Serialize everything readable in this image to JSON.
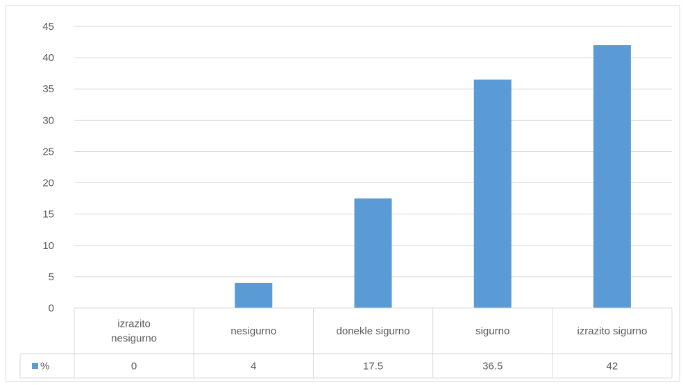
{
  "chart_data": {
    "type": "bar",
    "categories": [
      "izrazito nesigurno",
      "nesigurno",
      "donekle sigurno",
      "sigurno",
      "izrazito sigurno"
    ],
    "category_lines": [
      [
        "izrazito",
        "nesigurno"
      ],
      [
        "nesigurno"
      ],
      [
        "donekle sigurno"
      ],
      [
        "sigurno"
      ],
      [
        "izrazito sigurno"
      ]
    ],
    "series": [
      {
        "name": "%",
        "values": [
          0,
          4,
          17.5,
          36.5,
          42
        ],
        "color": "#5b9bd5"
      }
    ],
    "value_labels": [
      "0",
      "4",
      "17.5",
      "36.5",
      "42"
    ],
    "ylim": [
      0,
      45
    ],
    "yticks": [
      0,
      5,
      10,
      15,
      20,
      25,
      30,
      35,
      40,
      45
    ],
    "grid": true,
    "data_table": true,
    "legend_position": "data-table-row"
  }
}
